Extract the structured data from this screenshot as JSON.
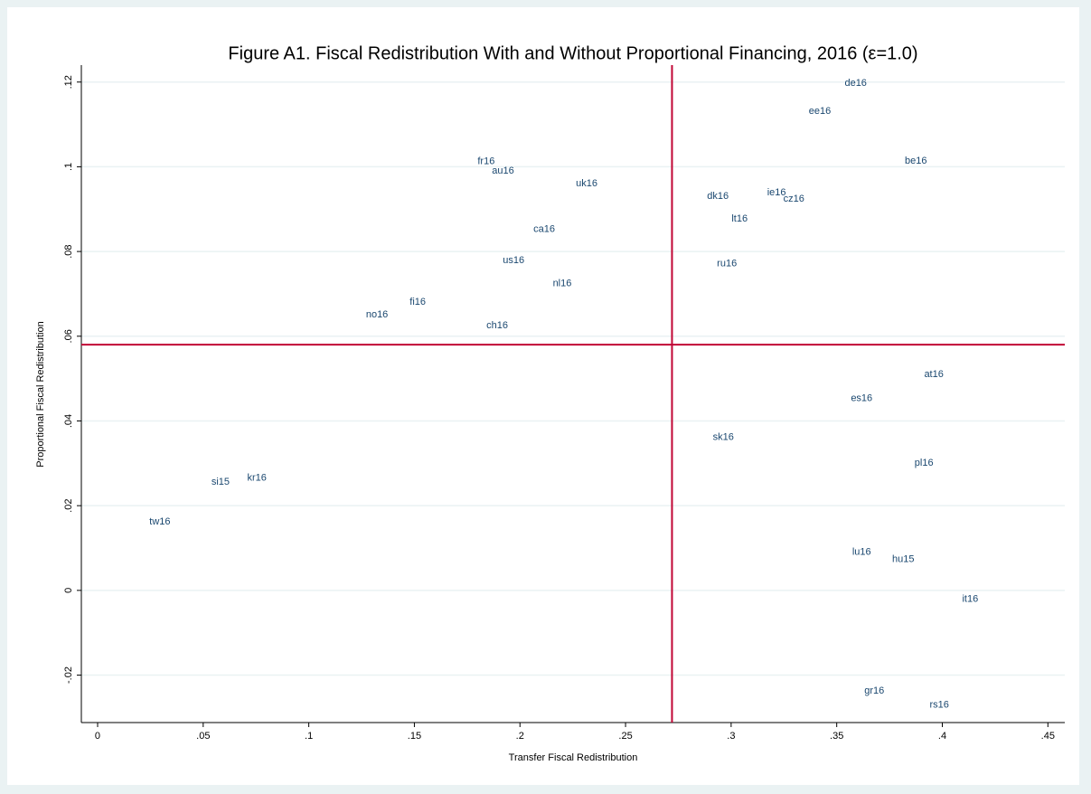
{
  "chart_data": {
    "type": "scatter",
    "title": "Figure A1. Fiscal Redistribution With and Without Proportional Financing, 2016 (ε=1.0)",
    "xlabel": "Transfer Fiscal Redistribution",
    "ylabel": "Proportional Fiscal Redistribution",
    "labels": [
      "de16",
      "ee16",
      "be16",
      "fr16",
      "au16",
      "uk16",
      "dk16",
      "ie16",
      "cz16",
      "lt16",
      "ca16",
      "us16",
      "ru16",
      "nl16",
      "fi16",
      "no16",
      "ch16",
      "at16",
      "es16",
      "sk16",
      "pl16",
      "si15",
      "kr16",
      "tw16",
      "lu16",
      "hu15",
      "it16",
      "gr16",
      "rs16"
    ],
    "x": [
      0.359,
      0.342,
      0.3875,
      0.184,
      0.192,
      0.2316,
      0.2937,
      0.3215,
      0.3297,
      0.304,
      0.2115,
      0.197,
      0.298,
      0.22,
      0.1516,
      0.1323,
      0.1892,
      0.396,
      0.3618,
      0.2963,
      0.3913,
      0.0582,
      0.0754,
      0.0295,
      0.3618,
      0.3815,
      0.4132,
      0.3678,
      0.3986
    ],
    "y": [
      0.1197,
      0.1131,
      0.1014,
      0.1012,
      0.099,
      0.096,
      0.093,
      0.0939,
      0.0924,
      0.0877,
      0.0852,
      0.0779,
      0.0771,
      0.0724,
      0.0681,
      0.0651,
      0.0625,
      0.051,
      0.0453,
      0.0361,
      0.0301,
      0.0256,
      0.0265,
      0.0162,
      0.009,
      0.0073,
      -0.0021,
      -0.0237,
      -0.0271
    ],
    "label_color": "#1a476f",
    "xline": 0.272,
    "yline": 0.058,
    "line_color": "#c10534",
    "xlim": [
      -0.0077,
      0.458
    ],
    "ylim": [
      -0.0312,
      0.124
    ],
    "xticks": [
      0,
      {
        "value": 0.05,
        "label": ".05"
      },
      {
        "value": 0.1,
        "label": ".1"
      },
      {
        "value": 0.15,
        "label": ".15"
      },
      {
        "value": 0.2,
        "label": ".2"
      },
      {
        "value": 0.25,
        "label": ".25"
      },
      {
        "value": 0.3,
        "label": ".3"
      },
      {
        "value": 0.35,
        "label": ".35"
      },
      {
        "value": 0.4,
        "label": ".4"
      },
      {
        "value": 0.45,
        "label": ".45"
      }
    ],
    "yticks": [
      {
        "value": -0.02,
        "label": "-.02"
      },
      0,
      {
        "value": 0.02,
        "label": ".02"
      },
      {
        "value": 0.04,
        "label": ".04"
      },
      {
        "value": 0.06,
        "label": ".06"
      },
      {
        "value": 0.08,
        "label": ".08"
      },
      {
        "value": 0.1,
        "label": ".1"
      },
      {
        "value": 0.12,
        "label": ".12"
      }
    ],
    "grid": true
  }
}
